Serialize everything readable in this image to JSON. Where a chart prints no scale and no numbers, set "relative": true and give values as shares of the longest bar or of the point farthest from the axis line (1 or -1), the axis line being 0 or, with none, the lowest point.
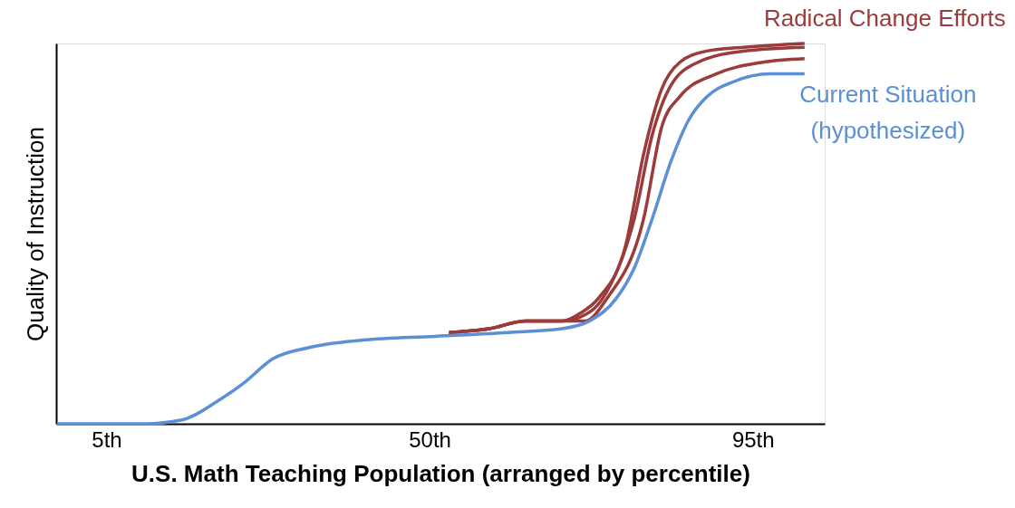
{
  "chart_data": {
    "type": "line",
    "relative": true,
    "xlabel": "U.S. Math Teaching Population (arranged by percentile)",
    "ylabel": "Quality of Instruction",
    "xlim": [
      -2,
      105
    ],
    "xticks": [
      {
        "value": 5,
        "label": "5th"
      },
      {
        "value": 50,
        "label": "50th"
      },
      {
        "value": 95,
        "label": "95th"
      }
    ],
    "grid": false,
    "series": [
      {
        "name": "Radical Change Efforts",
        "color": "#9b3b3b",
        "x": [
          52.7,
          58.3,
          63.4,
          68.4,
          70.9,
          73.5,
          77.3,
          79.8,
          82.3,
          84.8,
          88.6,
          93.7,
          102.2
        ],
        "values": [
          0.24,
          0.25,
          0.27,
          0.27,
          0.29,
          0.33,
          0.47,
          0.71,
          0.88,
          0.95,
          0.98,
          0.99,
          1.0
        ]
      },
      {
        "color": "#9b3b3b",
        "x": [
          52.7,
          58.3,
          63.4,
          68.4,
          70.9,
          74.1,
          78.5,
          81.0,
          83.6,
          87.3,
          93.7,
          102.2
        ],
        "values": [
          0.24,
          0.25,
          0.27,
          0.27,
          0.28,
          0.33,
          0.54,
          0.76,
          0.89,
          0.95,
          0.98,
          0.99
        ]
      },
      {
        "color": "#9b3b3b",
        "x": [
          52.7,
          58.3,
          63.4,
          68.4,
          71.6,
          74.7,
          79.8,
          82.3,
          84.8,
          89.9,
          96.2,
          102.2
        ],
        "values": [
          0.24,
          0.25,
          0.27,
          0.27,
          0.27,
          0.33,
          0.54,
          0.78,
          0.86,
          0.92,
          0.95,
          0.96
        ]
      },
      {
        "name": "Current Situation\n(hypothesized)",
        "color": "#5b8fd6",
        "x": [
          -1.9,
          10.4,
          15.5,
          20.5,
          24.3,
          28.1,
          33.1,
          40.7,
          50.8,
          60.9,
          68.4,
          72.2,
          76.0,
          78.5,
          81.0,
          83.6,
          86.1,
          88.6,
          92.4,
          97.4,
          102.2
        ],
        "values": [
          0,
          0,
          0.01,
          0.06,
          0.11,
          0.17,
          0.2,
          0.22,
          0.23,
          0.24,
          0.25,
          0.27,
          0.33,
          0.41,
          0.54,
          0.69,
          0.8,
          0.86,
          0.9,
          0.92,
          0.92
        ]
      }
    ]
  }
}
